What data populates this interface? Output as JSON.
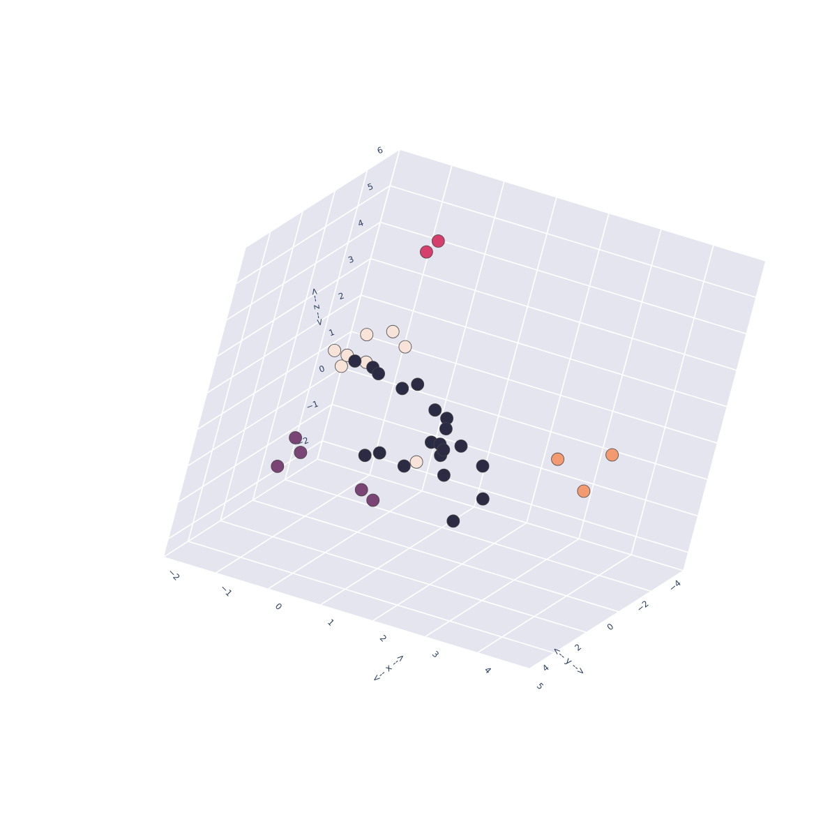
{
  "chart_data": {
    "type": "scatter3d",
    "title": "",
    "x_axis": {
      "label": "<-- x -->",
      "range": [
        -2,
        5
      ],
      "ticks": [
        -2,
        -1,
        0,
        1,
        2,
        3,
        4,
        5
      ]
    },
    "y_axis": {
      "label": "<-- y -->",
      "range": [
        -4,
        5.5
      ],
      "ticks": [
        -4,
        -2,
        0,
        2,
        4
      ]
    },
    "z_axis": {
      "label": "<-- z -->",
      "range": [
        -2.5,
        6
      ],
      "ticks": [
        -2,
        -1,
        0,
        1,
        2,
        3,
        4,
        5,
        6
      ]
    },
    "background": "#e5e5ef",
    "gridcolor": "#ffffff",
    "marker_outline": "#444444",
    "grid": true,
    "legend": "none",
    "clusters": [
      {
        "color": "#2b2b44",
        "points": [
          [
            -0.5,
            0.0,
            1.8
          ],
          [
            -0.8,
            0.2,
            1.9
          ],
          [
            0.3,
            -0.3,
            1.6
          ],
          [
            0.8,
            0.0,
            1.2
          ],
          [
            1.0,
            -0.2,
            1.0
          ],
          [
            1.2,
            0.5,
            1.0
          ],
          [
            1.5,
            0.3,
            0.6
          ],
          [
            1.3,
            0.8,
            0.4
          ],
          [
            2.0,
            0.4,
            0.3
          ],
          [
            0.8,
            1.2,
            0.0
          ],
          [
            1.5,
            1.0,
            0.0
          ],
          [
            2.3,
            1.0,
            -0.3
          ],
          [
            2.0,
            1.5,
            -0.9
          ],
          [
            0.0,
            -0.5,
            1.3
          ],
          [
            -0.3,
            0.3,
            1.8
          ],
          [
            0.4,
            1.6,
            0.3
          ],
          [
            0.2,
            1.8,
            0.2
          ],
          [
            1.1,
            0.9,
            0.7
          ],
          [
            1.25,
            0.85,
            0.7
          ],
          [
            1.35,
            0.9,
            0.6
          ]
        ]
      },
      {
        "color": "#f7e3d8",
        "points": [
          [
            -1.0,
            -1.0,
            2.2
          ],
          [
            -0.6,
            -1.2,
            2.4
          ],
          [
            -1.2,
            -0.8,
            1.6
          ],
          [
            -0.5,
            -2.0,
            1.8
          ],
          [
            -1.0,
            -1.5,
            1.3
          ],
          [
            -1.3,
            -1.0,
            1.2
          ],
          [
            1.0,
            1.2,
            0.2
          ],
          [
            -1.4,
            -0.6,
            1.7
          ]
        ]
      },
      {
        "color": "#d43f6b",
        "points": [
          [
            0.3,
            1.0,
            5.9
          ],
          [
            0.0,
            0.4,
            5.3
          ]
        ]
      },
      {
        "color": "#f49a71",
        "points": [
          [
            3.2,
            0.0,
            0.9
          ],
          [
            4.0,
            -0.6,
            1.2
          ],
          [
            4.0,
            0.8,
            0.6
          ]
        ]
      },
      {
        "color": "#7a4475",
        "points": [
          [
            -1.3,
            1.0,
            -0.2
          ],
          [
            -1.0,
            1.6,
            -0.3
          ],
          [
            -1.2,
            2.2,
            -0.6
          ],
          [
            0.3,
            1.8,
            -0.7
          ],
          [
            0.6,
            2.0,
            -0.8
          ]
        ]
      }
    ]
  }
}
